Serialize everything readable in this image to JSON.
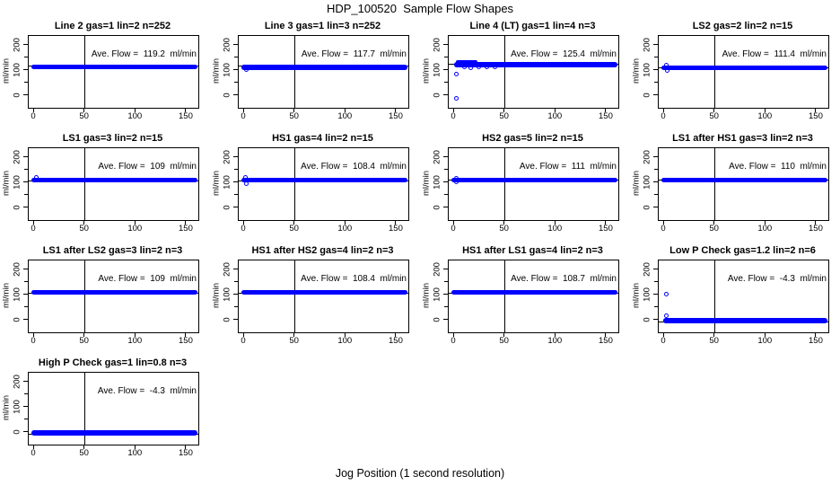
{
  "page": {
    "main_title": "HDP_100520  Sample Flow Shapes",
    "x_axis_title": "Jog Position (1 second resolution)",
    "y_axis_label": "ml/min",
    "colors": {
      "point_blue": "#0000ff",
      "axis_black": "#000000",
      "background": "#ffffff"
    }
  },
  "axes": {
    "x_ticks": [
      0,
      50,
      100,
      150
    ],
    "y_ticks": [
      0,
      100,
      200
    ],
    "y_minor_ticks": [
      50,
      150
    ],
    "xlim": [
      -5,
      161
    ],
    "ylim": [
      -47,
      238
    ],
    "grid": false,
    "marker": "open-circle"
  },
  "chart_data": [
    {
      "type": "scatter",
      "title": "Line 2 gas=1 lin=2 n=252",
      "ave_flow": 119.2,
      "ave_flow_label": "Ave. Flow =  119.2  ml/min",
      "bands": [
        {
          "x_start": 0,
          "x_end": 158,
          "y": 115,
          "half_height": 10
        }
      ],
      "outliers": []
    },
    {
      "type": "scatter",
      "title": "Line 3 gas=1 lin=3 n=252",
      "ave_flow": 117.7,
      "ave_flow_label": "Ave. Flow =  117.7  ml/min",
      "bands": [
        {
          "x_start": 0,
          "x_end": 158,
          "y": 114,
          "half_height": 10
        }
      ],
      "outliers": [
        [
          2,
          105
        ]
      ]
    },
    {
      "type": "scatter",
      "title": "Line 4 (LT) gas=1 lin=4 n=3",
      "ave_flow": 125.4,
      "ave_flow_label": "Ave. Flow =  125.4  ml/min",
      "bands": [
        {
          "x_start": 3,
          "x_end": 158,
          "y": 125,
          "half_height": 10
        },
        {
          "x_start": 4,
          "x_end": 20,
          "y": 134,
          "half_height": 8
        }
      ],
      "outliers": [
        [
          2,
          -8
        ],
        [
          2,
          88
        ],
        [
          10,
          114
        ],
        [
          16,
          113
        ],
        [
          24,
          114
        ],
        [
          32,
          115
        ],
        [
          40,
          116
        ]
      ]
    },
    {
      "type": "scatter",
      "title": "LS2 gas=2 lin=2 n=15",
      "ave_flow": 111.4,
      "ave_flow_label": "Ave. Flow =  111.4  ml/min",
      "bands": [
        {
          "x_start": 0,
          "x_end": 158,
          "y": 112,
          "half_height": 10
        }
      ],
      "outliers": [
        [
          2,
          121
        ],
        [
          3,
          102
        ]
      ]
    },
    {
      "type": "scatter",
      "title": "LS1 gas=3 lin=2 n=15",
      "ave_flow": 109,
      "ave_flow_label": "Ave. Flow =  109  ml/min",
      "bands": [
        {
          "x_start": 0,
          "x_end": 158,
          "y": 112,
          "half_height": 10
        }
      ],
      "outliers": [
        [
          2,
          121
        ]
      ]
    },
    {
      "type": "scatter",
      "title": "HS1 gas=4 lin=2 n=15",
      "ave_flow": 108.4,
      "ave_flow_label": "Ave. Flow =  108.4  ml/min",
      "bands": [
        {
          "x_start": 0,
          "x_end": 158,
          "y": 112,
          "half_height": 10
        }
      ],
      "outliers": [
        [
          1,
          122
        ],
        [
          2,
          97
        ]
      ]
    },
    {
      "type": "scatter",
      "title": "HS2 gas=5 lin=2 n=15",
      "ave_flow": 111,
      "ave_flow_label": "Ave. Flow =  111  ml/min",
      "bands": [
        {
          "x_start": 0,
          "x_end": 158,
          "y": 112,
          "half_height": 10
        }
      ],
      "outliers": [
        [
          2,
          120
        ],
        [
          2,
          103
        ]
      ]
    },
    {
      "type": "scatter",
      "title": "LS1 after HS1 gas=3 lin=2 n=3",
      "ave_flow": 110,
      "ave_flow_label": "Ave. Flow =  110  ml/min",
      "bands": [
        {
          "x_start": 0,
          "x_end": 158,
          "y": 112,
          "half_height": 10
        }
      ],
      "outliers": []
    },
    {
      "type": "scatter",
      "title": "LS1 after LS2 gas=3 lin=2 n=3",
      "ave_flow": 109,
      "ave_flow_label": "Ave. Flow =  109  ml/min",
      "bands": [
        {
          "x_start": 0,
          "x_end": 158,
          "y": 112,
          "half_height": 10
        }
      ],
      "outliers": []
    },
    {
      "type": "scatter",
      "title": "HS1 after HS2 gas=4 lin=2 n=3",
      "ave_flow": 108.4,
      "ave_flow_label": "Ave. Flow =  108.4  ml/min",
      "bands": [
        {
          "x_start": 0,
          "x_end": 158,
          "y": 112,
          "half_height": 10
        }
      ],
      "outliers": []
    },
    {
      "type": "scatter",
      "title": "HS1 after LS1 gas=4 lin=2 n=3",
      "ave_flow": 108.7,
      "ave_flow_label": "Ave. Flow =  108.7  ml/min",
      "bands": [
        {
          "x_start": 0,
          "x_end": 158,
          "y": 112,
          "half_height": 10
        }
      ],
      "outliers": []
    },
    {
      "type": "scatter",
      "title": "Low P Check gas=1.2 lin=2 n=6",
      "ave_flow": -4.3,
      "ave_flow_label": "Ave. Flow =  -4.3  ml/min",
      "bands": [
        {
          "x_start": 2,
          "x_end": 158,
          "y": 0,
          "half_height": 10
        }
      ],
      "outliers": [
        [
          2,
          105
        ],
        [
          2,
          20
        ]
      ]
    },
    {
      "type": "scatter",
      "title": "High P Check gas=1 lin=0.8 n=3",
      "ave_flow": -4.3,
      "ave_flow_label": "Ave. Flow =  -4.3  ml/min",
      "bands": [
        {
          "x_start": 0,
          "x_end": 158,
          "y": 0,
          "half_height": 10
        }
      ],
      "outliers": []
    }
  ]
}
